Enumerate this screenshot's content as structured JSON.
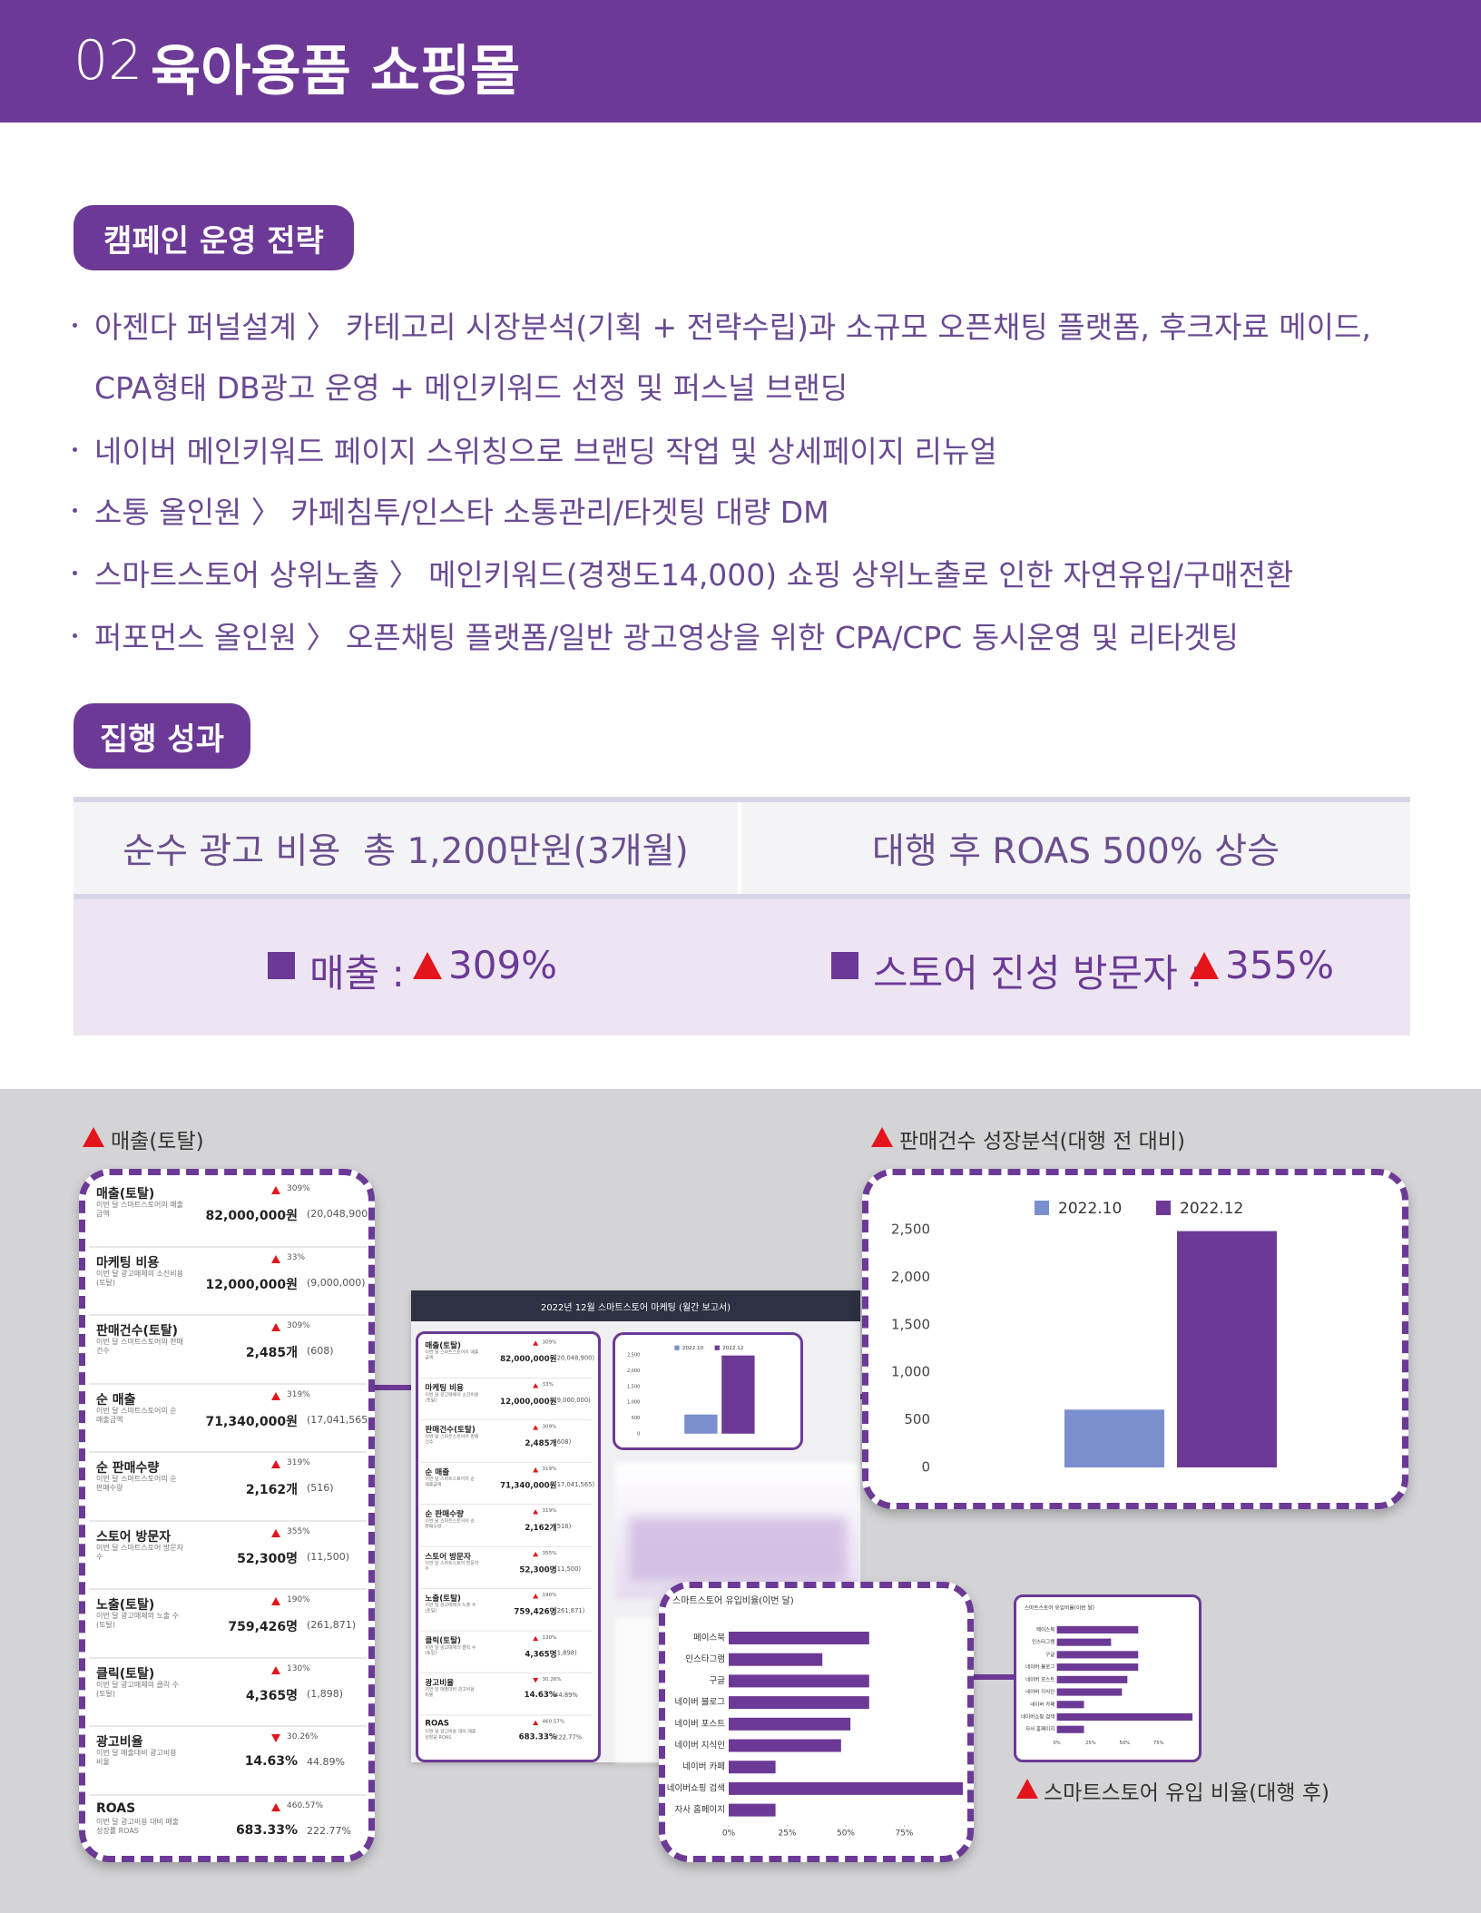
{
  "header": {
    "number": "02",
    "title": "육아용품 쇼핑몰"
  },
  "strategy": {
    "heading": "캠페인 운영 전략",
    "items": [
      [
        "아젠다 퍼널설계 〉 카테고리 시장분석(기획 + 전략수립)과 소규모 오픈채팅 플랫폼, 후크자료 메이드,",
        "CPA형태 DB광고 운영 + 메인키워드 선정 및 퍼스널 브랜딩"
      ],
      [
        "네이버 메인키워드 페이지 스위칭으로 브랜딩 작업 및 상세페이지 리뉴얼"
      ],
      [
        "소통 올인원 〉 카페침투/인스타 소통관리/타겟팅 대량 DM"
      ],
      [
        "스마트스토어 상위노출 〉 메인키워드(경쟁도14,000) 쇼핑 상위노출로 인한 자연유입/구매전환"
      ],
      [
        "퍼포먼스 올인원 〉 오픈채팅 플랫폼/일반 광고영상을 위한 CPA/CPC 동시운영 및 리타겟팅"
      ]
    ]
  },
  "results": {
    "heading": "집행 성과",
    "cost": "순수 광고 비용  총 1,200만원(3개월)",
    "roas": "대행 후 ROAS 500% 상승",
    "sales_label": "매출 :",
    "sales_change": "309%",
    "visitors_label": "스토어 진성 방문자 :",
    "visitors_change": "355%"
  },
  "dashboard": {
    "sales_caption": "매출(토탈)",
    "growth_caption": "판매건수 성장분석(대행 전 대비)",
    "inflow_caption": "스마트스토어 유입 비율(대행 후)",
    "report_title": "2022년 12월 스마트스토어 마케팅 (월간 보고서)",
    "metrics": [
      {
        "name": "매출(토탈)",
        "desc": "이번 달 스마트스토어의 매출금액",
        "value": "82,000,000원",
        "trend": "up",
        "change": "309%",
        "previous": "(20,048,900)"
      },
      {
        "name": "마케팅 비용",
        "desc": "이번 달 광고매체의 소진비용(토탈)",
        "value": "12,000,000원",
        "trend": "up",
        "change": "33%",
        "previous": "(9,000,000)"
      },
      {
        "name": "판매건수(토탈)",
        "desc": "이번 달 스마트스토어의 판매건수",
        "value": "2,485개",
        "trend": "up",
        "change": "309%",
        "previous": "(608)"
      },
      {
        "name": "순 매출",
        "desc": "이번 달 스마트스토어의 순 매출금액",
        "value": "71,340,000원",
        "trend": "up",
        "change": "319%",
        "previous": "(17,041,565)"
      },
      {
        "name": "순 판매수량",
        "desc": "이번 달 스마트스토어의 순 판매수량",
        "value": "2,162개",
        "trend": "up",
        "change": "319%",
        "previous": "(516)"
      },
      {
        "name": "스토어 방문자",
        "desc": "이번 달 스마트스토어 방문자 수",
        "value": "52,300명",
        "trend": "up",
        "change": "355%",
        "previous": "(11,500)"
      },
      {
        "name": "노출(토탈)",
        "desc": "이번 달 광고매체의 노출 수(토탈)",
        "value": "759,426명",
        "trend": "up",
        "change": "190%",
        "previous": "(261,871)"
      },
      {
        "name": "클릭(토탈)",
        "desc": "이번 달 광고매체의 클릭 수(토탈)",
        "value": "4,365명",
        "trend": "up",
        "change": "130%",
        "previous": "(1,898)"
      },
      {
        "name": "광고비율",
        "desc": "이번 달 매출대비 광고비용 비율",
        "value": "14.63%",
        "trend": "down",
        "change": "30.26%",
        "previous": "44.89%"
      },
      {
        "name": "ROAS",
        "desc": "이번 달 광고비용 대비 매출 성장률 ROAS",
        "value": "683.33%",
        "trend": "up",
        "change": "460.57%",
        "previous": "222.77%"
      }
    ]
  },
  "chart_data": [
    {
      "type": "bar",
      "categories": [
        null
      ],
      "series": [
        {
          "name": "2022.10",
          "color": "#7b8fcf",
          "values": [
            608
          ]
        },
        {
          "name": "2022.12",
          "color": "#6c3a96",
          "values": [
            2485
          ]
        }
      ],
      "ylim": [
        0,
        2500
      ],
      "yticks": [
        0,
        500,
        {
          "value": 1000,
          "label": "1,000"
        },
        {
          "value": 1500,
          "label": "1,500"
        },
        {
          "value": 2000,
          "label": "2,000"
        },
        {
          "value": 2500,
          "label": "2,500"
        }
      ]
    },
    {
      "type": "barh",
      "title": "스마트스토어 유입비율(이번 달)",
      "categories": [
        "페이스북",
        "인스타그램",
        "구글",
        "네이버 블로그",
        "네이버 포스트",
        "네이버 지식인",
        "네이버 카페",
        "네이버쇼핑 검색",
        "자사 홈페이지"
      ],
      "values": [
        60,
        40,
        60,
        60,
        52,
        48,
        20,
        100,
        20
      ],
      "color": "#6c3a96",
      "xlim": [
        0,
        100
      ],
      "xticks": [
        {
          "value": 0,
          "label": "0%"
        },
        {
          "value": 25,
          "label": "25%"
        },
        {
          "value": 50,
          "label": "50%"
        },
        {
          "value": 75,
          "label": "75%"
        }
      ]
    }
  ]
}
